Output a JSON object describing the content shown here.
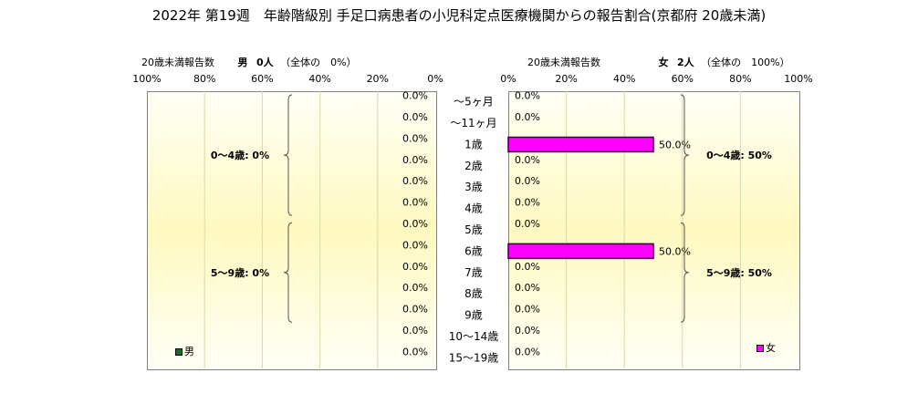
{
  "title": "2022年 第19週　年齢階級別 手足口病患者の小児科定点医療機関からの報告割合(京都府 20歳未満)",
  "left_header": {
    "label": "20歳未満報告数",
    "sex": "男",
    "count": "0人",
    "share": "（全体の　0%）"
  },
  "right_header": {
    "label": "20歳未満報告数",
    "sex": "女",
    "count": "2人",
    "share": "（全体の　100%）"
  },
  "left_brackets": [
    "0～4歳: 0%",
    "5～9歳: 0%"
  ],
  "right_brackets": [
    "0～4歳: 50%",
    "5～9歳: 50%"
  ],
  "legend_male": "男",
  "legend_female": "女",
  "colors": {
    "male": "#1a6b2a",
    "female": "#ff00ff",
    "female_edge": "#330033"
  },
  "chart_data": [
    {
      "type": "bar",
      "orientation": "horizontal",
      "x_direction": "reversed",
      "categories": [
        "～5ヶ月",
        "～11ヶ月",
        "1歳",
        "2歳",
        "3歳",
        "4歳",
        "5歳",
        "6歳",
        "7歳",
        "8歳",
        "9歳",
        "10～14歳",
        "15～19歳"
      ],
      "series": [
        {
          "name": "男",
          "values": [
            0,
            0,
            0,
            0,
            0,
            0,
            0,
            0,
            0,
            0,
            0,
            0,
            0
          ]
        }
      ],
      "data_labels": [
        "0.0%",
        "0.0%",
        "0.0%",
        "0.0%",
        "0.0%",
        "0.0%",
        "0.0%",
        "0.0%",
        "0.0%",
        "0.0%",
        "0.0%",
        "0.0%",
        "0.0%"
      ],
      "xlim": [
        0,
        100
      ],
      "x_ticks": [
        "100%",
        "80%",
        "60%",
        "40%",
        "20%",
        "0%"
      ],
      "grid": true
    },
    {
      "type": "bar",
      "orientation": "horizontal",
      "categories": [
        "～5ヶ月",
        "～11ヶ月",
        "1歳",
        "2歳",
        "3歳",
        "4歳",
        "5歳",
        "6歳",
        "7歳",
        "8歳",
        "9歳",
        "10～14歳",
        "15～19歳"
      ],
      "series": [
        {
          "name": "女",
          "values": [
            0,
            0,
            50,
            0,
            0,
            0,
            0,
            50,
            0,
            0,
            0,
            0,
            0
          ]
        }
      ],
      "data_labels": [
        "0.0%",
        "0.0%",
        "50.0%",
        "0.0%",
        "0.0%",
        "0.0%",
        "0.0%",
        "50.0%",
        "0.0%",
        "0.0%",
        "0.0%",
        "0.0%",
        "0.0%"
      ],
      "xlim": [
        0,
        100
      ],
      "x_ticks": [
        "0%",
        "20%",
        "40%",
        "60%",
        "80%",
        "100%"
      ],
      "grid": true
    }
  ]
}
